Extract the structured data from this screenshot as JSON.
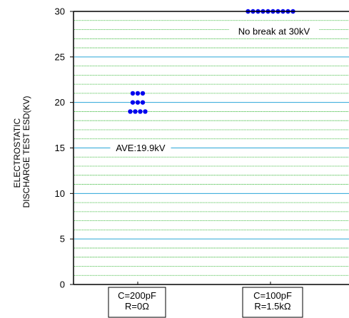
{
  "chart_data": {
    "type": "scatter",
    "ylabel_lines": [
      "ELECTROSTATIC",
      "DISCHARGE TEST ESD(KV)"
    ],
    "ylim": [
      0,
      30
    ],
    "yticks": [
      0,
      5,
      10,
      15,
      20,
      25,
      30
    ],
    "minor_grid_step": 1,
    "grid": true,
    "categories": [
      {
        "lines": [
          "C=200pF",
          "R=0Ω"
        ]
      },
      {
        "lines": [
          "C=100pF",
          "R=1.5kΩ"
        ]
      }
    ],
    "series": [
      {
        "category_index": 0,
        "points": [
          {
            "y": 21,
            "count": 3
          },
          {
            "y": 20,
            "count": 3
          },
          {
            "y": 19,
            "count": 4
          }
        ]
      },
      {
        "category_index": 1,
        "points": [
          {
            "y": 30,
            "count": 10
          }
        ]
      }
    ],
    "annotations": [
      {
        "text": "No break at 30kV",
        "y": 27.8,
        "category_index": 1
      },
      {
        "text": "AVE:19.9kV",
        "y": 15,
        "category_index": 0
      }
    ],
    "colors": {
      "marker": "#0000ee",
      "major_grid": "#2aa6d8",
      "minor_grid": "#22b022",
      "axis": "#000000"
    }
  }
}
